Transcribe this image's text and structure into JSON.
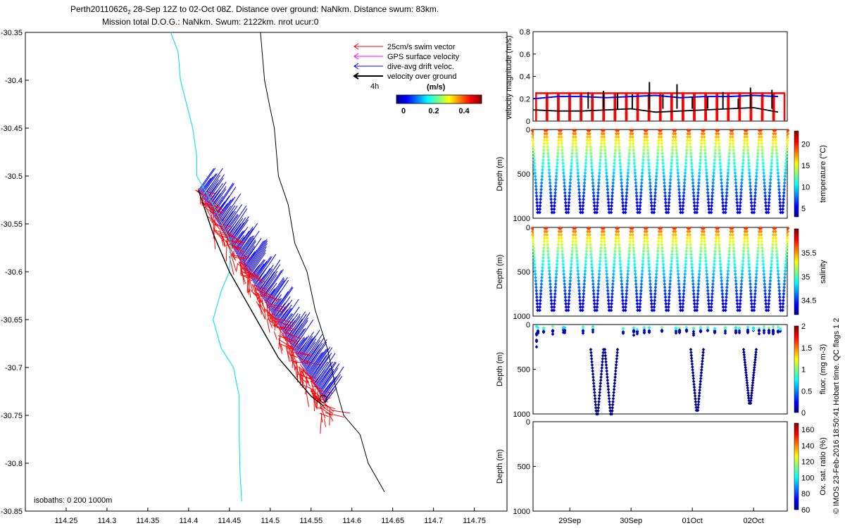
{
  "header": {
    "title_line1_pre": "Perth20110626",
    "title_line1_sub": "2",
    "title_line1_post": " 28-Sep 12Z to 02-Oct 08Z. Distance over ground: NaNkm. Distance swum: 83km.",
    "title_line2": "Mission total D.O.G.: NaNkm. Swum: 2122km. nrot ucur:0"
  },
  "footer": {
    "vertical_note": "© IMOS 23-Feb-2016 18:50:41 Hobart time. QC flags 1  2"
  },
  "chart_data": [
    {
      "id": "map",
      "type": "scatter",
      "xlim": [
        114.2,
        114.79
      ],
      "ylim": [
        -30.85,
        -30.35
      ],
      "xticks": [
        "114.25",
        "114.3",
        "114.35",
        "114.4",
        "114.45",
        "114.5",
        "114.55",
        "114.6",
        "114.65",
        "114.7",
        "114.75"
      ],
      "yticks": [
        "-30.35",
        "-30.4",
        "-30.45",
        "-30.5",
        "-30.55",
        "-30.6",
        "-30.65",
        "-30.7",
        "-30.75",
        "-30.8",
        "-30.85"
      ],
      "legend": [
        {
          "label": "25cm/s swim vector",
          "color": "#ff0000"
        },
        {
          "label": "GPS surface velocity",
          "color": "#ff00ff"
        },
        {
          "label": "dive-avg drift veloc.",
          "color": "#0000ff"
        },
        {
          "label": "velocity over ground",
          "color": "#000000"
        }
      ],
      "scale_label": "4h",
      "colorbar_title": "(m/s)",
      "colorbar_ticks": [
        "0",
        "0.2",
        "0.4"
      ],
      "annotation": "isobaths: 0   200  1000m",
      "isobath_0": {
        "color": "#00e5ee",
        "points": [
          [
            114.378,
            -30.35
          ],
          [
            114.387,
            -30.37
          ],
          [
            114.39,
            -30.4
          ],
          [
            114.405,
            -30.45
          ],
          [
            114.41,
            -30.48
          ],
          [
            114.41,
            -30.5
          ],
          [
            114.43,
            -30.53
          ],
          [
            114.452,
            -30.57
          ],
          [
            114.45,
            -30.6
          ],
          [
            114.44,
            -30.62
          ],
          [
            114.43,
            -30.65
          ],
          [
            114.44,
            -30.68
          ],
          [
            114.455,
            -30.7
          ],
          [
            114.462,
            -30.73
          ],
          [
            114.462,
            -30.77
          ],
          [
            114.463,
            -30.81
          ],
          [
            114.465,
            -30.84
          ]
        ]
      },
      "isobath_1000": {
        "color": "#000000",
        "points": [
          [
            114.488,
            -30.35
          ],
          [
            114.493,
            -30.4
          ],
          [
            114.5,
            -30.43
          ],
          [
            114.505,
            -30.45
          ],
          [
            114.51,
            -30.5
          ],
          [
            114.522,
            -30.53
          ],
          [
            114.53,
            -30.57
          ],
          [
            114.545,
            -30.6
          ],
          [
            114.555,
            -30.64
          ],
          [
            114.57,
            -30.68
          ],
          [
            114.58,
            -30.72
          ],
          [
            114.59,
            -30.75
          ],
          [
            114.61,
            -30.77
          ],
          [
            114.62,
            -30.8
          ],
          [
            114.64,
            -30.83
          ]
        ]
      },
      "track": {
        "color": "#000000",
        "points": [
          [
            114.412,
            -30.515
          ],
          [
            114.43,
            -30.56
          ],
          [
            114.45,
            -30.6
          ],
          [
            114.47,
            -30.63
          ],
          [
            114.49,
            -30.66
          ],
          [
            114.51,
            -30.69
          ],
          [
            114.53,
            -30.71
          ],
          [
            114.55,
            -30.73
          ],
          [
            114.565,
            -30.74
          ]
        ]
      }
    },
    {
      "id": "velocity",
      "type": "line",
      "ylabel": "velocity magnitude (m/s)",
      "ylim": [
        0,
        0.8
      ],
      "yticks": [
        "0",
        "0.2",
        "0.4",
        "0.6",
        "0.8"
      ],
      "x_range_days": [
        28.4,
        32.55
      ],
      "xticks": [
        {
          "label": "29Sep",
          "x": 29.0
        },
        {
          "label": "30Sep",
          "x": 30.0
        },
        {
          "label": "01Oct",
          "x": 31.0
        },
        {
          "label": "02Oct",
          "x": 32.0
        }
      ],
      "series": [
        {
          "color": "#ff0000",
          "x": [
            28.4,
            32.4
          ],
          "values": [
            0.25,
            0.25
          ]
        },
        {
          "color": "#0000ff",
          "x": [
            28.4,
            28.8,
            29.2,
            29.6,
            30.0,
            30.4,
            30.8,
            31.2,
            31.6,
            32.0,
            32.4
          ],
          "values": [
            0.2,
            0.22,
            0.22,
            0.21,
            0.22,
            0.23,
            0.21,
            0.22,
            0.22,
            0.23,
            0.22
          ]
        },
        {
          "color": "#000000",
          "x": [
            28.4,
            28.8,
            29.2,
            29.6,
            30.0,
            30.4,
            30.8,
            31.2,
            31.6,
            32.0,
            32.4
          ],
          "values": [
            0.1,
            0.09,
            0.09,
            0.1,
            0.11,
            0.08,
            0.09,
            0.1,
            0.11,
            0.12,
            0.08
          ]
        }
      ]
    },
    {
      "id": "temperature",
      "type": "scatter",
      "ylabel": "Depth (m)",
      "ylim": [
        1000,
        0
      ],
      "yticks": [
        "0",
        "500",
        "1000"
      ],
      "colorbar_label": "temperature (°C)",
      "colorbar_ticks": [
        "5",
        "10",
        "15",
        "20"
      ]
    },
    {
      "id": "salinity",
      "type": "scatter",
      "ylabel": "Depth (m)",
      "ylim": [
        1000,
        0
      ],
      "yticks": [
        "0",
        "500",
        "1000"
      ],
      "colorbar_label": "salinity",
      "colorbar_ticks": [
        "34.5",
        "35",
        "35.5"
      ]
    },
    {
      "id": "fluorescence",
      "type": "scatter",
      "ylabel": "Depth (m)",
      "ylim": [
        1000,
        0
      ],
      "yticks": [
        "0",
        "500",
        "1000"
      ],
      "colorbar_label": "fluor. (mg m-3)",
      "colorbar_ticks": [
        "0",
        "0.5",
        "1",
        "1.5",
        "2"
      ]
    },
    {
      "id": "oxygen",
      "type": "scatter",
      "ylabel": "Depth (m)",
      "ylim": [
        1000,
        0
      ],
      "yticks": [
        "0",
        "500",
        "1000"
      ],
      "colorbar_label": "Ox. sat. ratio (%)",
      "colorbar_ticks": [
        "60",
        "80",
        "100",
        "120",
        "140",
        "160"
      ],
      "xticks": [
        "29Sep",
        "30Sep",
        "01Oct",
        "02Oct"
      ]
    }
  ]
}
